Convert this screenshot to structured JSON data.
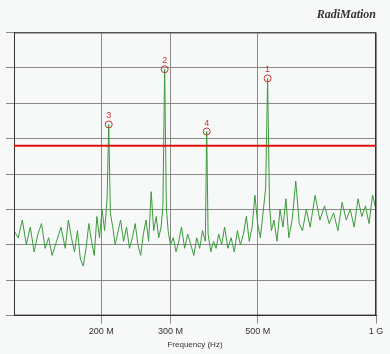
{
  "chart_data": {
    "type": "line",
    "title": "RadiMation",
    "x_label": "Frequency (Hz)",
    "log": "x",
    "grid": true,
    "tick_labels": "x",
    "xlim": [
      120000000.0,
      1000000000.0
    ],
    "xticks": [
      {
        "value": 200000000.0,
        "label": "200 M"
      },
      {
        "value": 300000000.0,
        "label": "300 M"
      },
      {
        "value": 500000000.0,
        "label": "500 M"
      },
      {
        "value": 1000000000.0,
        "label": "1 G"
      }
    ],
    "ylim": [
      0,
      80
    ],
    "yticks": [
      0,
      10,
      20,
      30,
      40,
      50,
      60,
      70,
      80
    ],
    "color": "#3c9a3c",
    "x": [
      120000000.0,
      123000000.0,
      126000000.0,
      129000000.0,
      132000000.0,
      135000000.0,
      138000000.0,
      141000000.0,
      144000000.0,
      147000000.0,
      150000000.0,
      154000000.0,
      158000000.0,
      162000000.0,
      165000000.0,
      168000000.0,
      171000000.0,
      174000000.0,
      177000000.0,
      180000000.0,
      183000000.0,
      186000000.0,
      189000000.0,
      192000000.0,
      195000000.0,
      198000000.0,
      201000000.0,
      204000000.0,
      207000000.0,
      209000000.0,
      211000000.0,
      214000000.0,
      217000000.0,
      220000000.0,
      224000000.0,
      228000000.0,
      232000000.0,
      236000000.0,
      240000000.0,
      244000000.0,
      248000000.0,
      252000000.0,
      256000000.0,
      260000000.0,
      264000000.0,
      268000000.0,
      272000000.0,
      276000000.0,
      280000000.0,
      284000000.0,
      287000000.0,
      290000000.0,
      293000000.0,
      296000000.0,
      300000000.0,
      305000000.0,
      310000000.0,
      315000000.0,
      320000000.0,
      326000000.0,
      332000000.0,
      338000000.0,
      344000000.0,
      350000000.0,
      356000000.0,
      362000000.0,
      368000000.0,
      371000000.0,
      374000000.0,
      380000000.0,
      386000000.0,
      392000000.0,
      398000000.0,
      405000000.0,
      412000000.0,
      420000000.0,
      428000000.0,
      436000000.0,
      444000000.0,
      452000000.0,
      460000000.0,
      468000000.0,
      476000000.0,
      484000000.0,
      492000000.0,
      500000000.0,
      508000000.0,
      516000000.0,
      524000000.0,
      530000000.0,
      536000000.0,
      542000000.0,
      550000000.0,
      560000000.0,
      570000000.0,
      580000000.0,
      590000000.0,
      600000000.0,
      612000000.0,
      625000000.0,
      638000000.0,
      650000000.0,
      665000000.0,
      680000000.0,
      700000000.0,
      720000000.0,
      740000000.0,
      760000000.0,
      780000000.0,
      800000000.0,
      820000000.0,
      840000000.0,
      860000000.0,
      880000000.0,
      900000000.0,
      920000000.0,
      940000000.0,
      960000000.0,
      980000000.0,
      1000000000.0
    ],
    "values": [
      24,
      22,
      27,
      20,
      25,
      18,
      23,
      26,
      19,
      22,
      17,
      21,
      25,
      19,
      27,
      22,
      18,
      24,
      16,
      14,
      19,
      26,
      21,
      17,
      28,
      22,
      30,
      24,
      33,
      54,
      29,
      25,
      20,
      23,
      27,
      21,
      25,
      19,
      22,
      26,
      20,
      17,
      23,
      27,
      21,
      35,
      24,
      28,
      22,
      25,
      31,
      69.6,
      30,
      24,
      20,
      22,
      18,
      21,
      25,
      19,
      23,
      20,
      17,
      22,
      19,
      24,
      21,
      52,
      23,
      18,
      21,
      19,
      23,
      20,
      25,
      19,
      22,
      18,
      24,
      20,
      23,
      28,
      21,
      25,
      34,
      26,
      22,
      29,
      36,
      67,
      31,
      24,
      27,
      21,
      30,
      25,
      33,
      22,
      27,
      38,
      26,
      24,
      30,
      25,
      34,
      27,
      31,
      26,
      29,
      24,
      32,
      27,
      30,
      25,
      33,
      28,
      31,
      26,
      34,
      30
    ],
    "reference_lines": [
      {
        "y": 48,
        "color": "#e01010"
      }
    ],
    "annotations": [
      {
        "text": "1",
        "x": 530000000.0,
        "y": 67,
        "color": "#c83232",
        "marker": "circle"
      },
      {
        "text": "2",
        "x": 290000000.0,
        "y": 69.6,
        "color": "#c83232",
        "marker": "circle"
      },
      {
        "text": "3",
        "x": 209000000.0,
        "y": 54,
        "color": "#c83232",
        "marker": "circle"
      },
      {
        "text": "4",
        "x": 371000000.0,
        "y": 52,
        "color": "#c83232",
        "marker": "circle"
      }
    ]
  }
}
